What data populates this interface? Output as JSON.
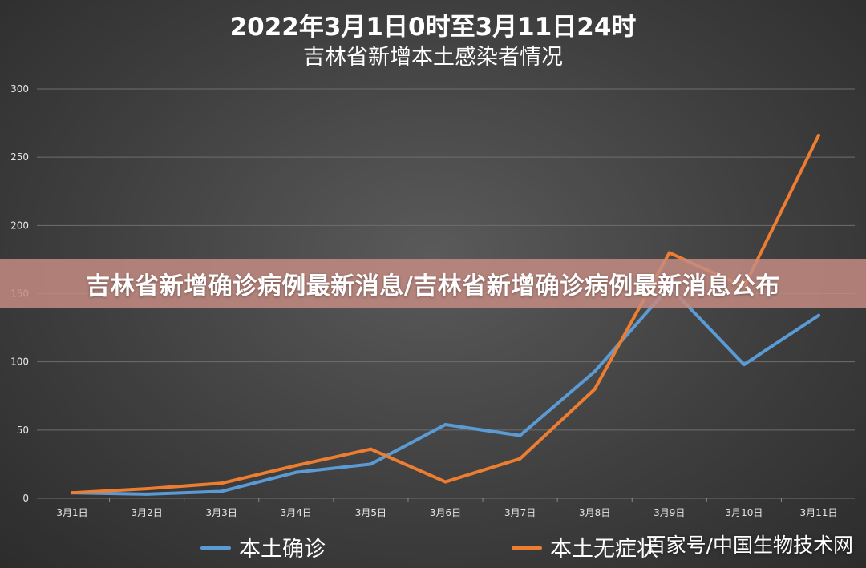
{
  "chart_data": {
    "type": "line",
    "title": "2022年3月1日0时至3月11日24时",
    "subtitle": "吉林省新增本土感染者情况",
    "categories": [
      "3月1日",
      "3月2日",
      "3月3日",
      "3月4日",
      "3月5日",
      "3月6日",
      "3月7日",
      "3月8日",
      "3月9日",
      "3月10日",
      "3月11日"
    ],
    "ylim": [
      0,
      300
    ],
    "yticks": [
      0,
      50,
      100,
      150,
      200,
      250,
      300
    ],
    "grid": true,
    "legend_position": "bottom",
    "series": [
      {
        "name": "本土确诊",
        "color": "#5b9bd5",
        "values": [
          4,
          3,
          5,
          19,
          25,
          54,
          46,
          93,
          155,
          98,
          134
        ]
      },
      {
        "name": "本土无症状",
        "color": "#ed7d31",
        "values": [
          4,
          7,
          11,
          24,
          36,
          12,
          29,
          80,
          180,
          155,
          266
        ]
      }
    ]
  },
  "banner": {
    "text": "吉林省新增确诊病例最新消息/吉林省新增确诊病例最新消息公布"
  },
  "watermark": {
    "text": "百家号/中国生物技术网"
  }
}
